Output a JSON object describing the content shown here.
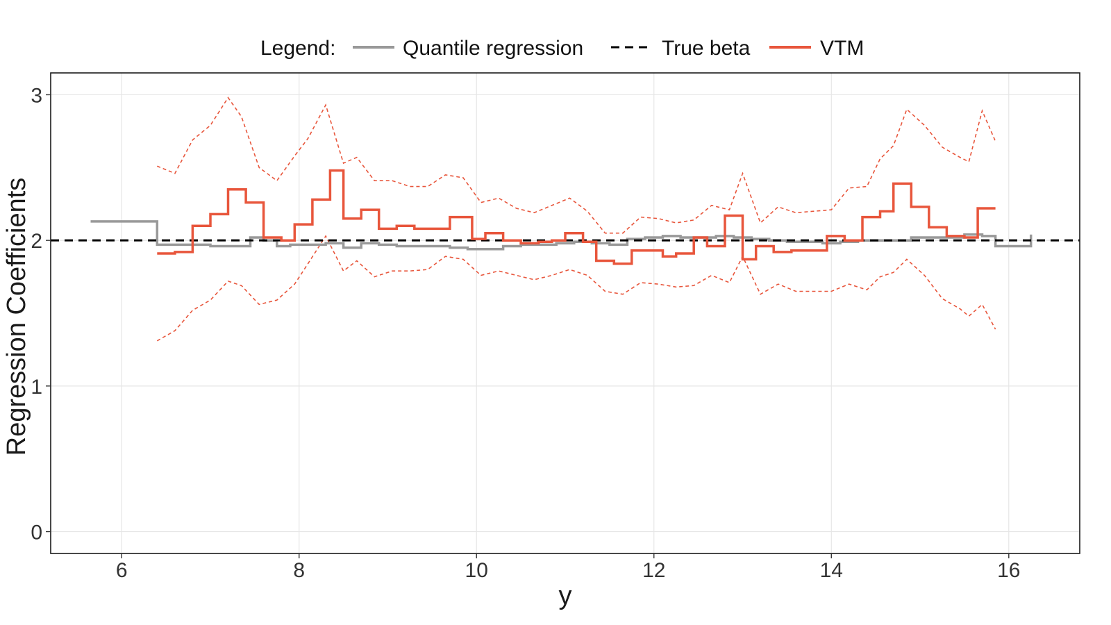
{
  "chart_data": {
    "type": "line",
    "title": "",
    "xlabel": "y",
    "ylabel": "Regression Coefficients",
    "xlim": [
      5.2,
      16.8
    ],
    "ylim": [
      -0.15,
      3.15
    ],
    "x_ticks": [
      6,
      8,
      10,
      12,
      14,
      16
    ],
    "y_ticks": [
      0,
      1,
      2,
      3
    ],
    "grid": true,
    "legend": {
      "position": "top",
      "title": "Legend:",
      "entries": [
        {
          "label": "Quantile regression",
          "color": "#999999",
          "style": "solid"
        },
        {
          "label": "True beta",
          "color": "#000000",
          "style": "dashed"
        },
        {
          "label": "VTM",
          "color": "#E8563C",
          "style": "solid"
        }
      ]
    },
    "series": [
      {
        "name": "Quantile regression",
        "kind": "step",
        "color": "#999999",
        "x": [
          5.65,
          6.4,
          6.55,
          6.8,
          7.0,
          7.2,
          7.45,
          7.6,
          7.75,
          7.9,
          8.1,
          8.3,
          8.5,
          8.7,
          8.9,
          9.1,
          9.3,
          9.5,
          9.7,
          9.9,
          10.1,
          10.3,
          10.5,
          10.7,
          10.9,
          11.1,
          11.3,
          11.5,
          11.7,
          11.9,
          12.1,
          12.3,
          12.5,
          12.7,
          12.9,
          13.1,
          13.3,
          13.5,
          13.7,
          13.9,
          14.1,
          14.3,
          14.5,
          14.7,
          14.9,
          15.1,
          15.3,
          15.5,
          15.7,
          15.85,
          16.25
        ],
        "y": [
          2.13,
          1.97,
          1.97,
          1.97,
          1.96,
          1.96,
          2.02,
          2.0,
          1.96,
          1.97,
          1.97,
          1.98,
          1.95,
          1.98,
          1.97,
          1.96,
          1.96,
          1.96,
          1.95,
          1.94,
          1.94,
          1.96,
          1.97,
          1.97,
          1.98,
          1.99,
          1.98,
          1.97,
          2.01,
          2.02,
          2.03,
          2.02,
          2.02,
          2.03,
          2.02,
          2.01,
          2.0,
          1.99,
          1.99,
          1.98,
          1.99,
          2.0,
          2.0,
          2.0,
          2.02,
          2.02,
          2.02,
          2.04,
          2.03,
          1.96,
          2.04
        ]
      },
      {
        "name": "True beta",
        "kind": "hline",
        "color": "#000000",
        "y": 2.0
      },
      {
        "name": "VTM",
        "kind": "step",
        "color": "#E8563C",
        "x": [
          6.4,
          6.6,
          6.8,
          7.0,
          7.2,
          7.4,
          7.6,
          7.8,
          7.95,
          8.15,
          8.35,
          8.5,
          8.7,
          8.9,
          9.1,
          9.3,
          9.5,
          9.7,
          9.95,
          10.1,
          10.3,
          10.5,
          10.7,
          10.85,
          11.0,
          11.2,
          11.35,
          11.55,
          11.75,
          11.9,
          12.1,
          12.25,
          12.45,
          12.6,
          12.8,
          13.0,
          13.15,
          13.35,
          13.55,
          13.75,
          13.95,
          14.15,
          14.35,
          14.55,
          14.7,
          14.9,
          15.1,
          15.3,
          15.5,
          15.65,
          15.85
        ],
        "y": [
          1.91,
          1.92,
          2.1,
          2.18,
          2.35,
          2.26,
          2.02,
          2.0,
          2.11,
          2.28,
          2.48,
          2.15,
          2.21,
          2.08,
          2.1,
          2.08,
          2.08,
          2.16,
          2.01,
          2.05,
          2.0,
          1.98,
          1.99,
          2.0,
          2.05,
          1.99,
          1.86,
          1.84,
          1.93,
          1.93,
          1.89,
          1.91,
          2.02,
          1.96,
          2.17,
          1.87,
          1.96,
          1.92,
          1.93,
          1.93,
          2.03,
          2.0,
          2.16,
          2.2,
          2.39,
          2.23,
          2.09,
          2.03,
          2.02,
          2.22,
          2.22
        ]
      },
      {
        "name": "",
        "kind": "band-upper",
        "color": "#E8563C",
        "x": [
          6.4,
          6.6,
          6.8,
          7.0,
          7.2,
          7.35,
          7.55,
          7.75,
          7.95,
          8.1,
          8.3,
          8.5,
          8.65,
          8.85,
          9.05,
          9.25,
          9.45,
          9.65,
          9.85,
          10.05,
          10.25,
          10.45,
          10.65,
          10.85,
          11.05,
          11.25,
          11.45,
          11.65,
          11.85,
          12.05,
          12.25,
          12.45,
          12.65,
          12.85,
          13.0,
          13.2,
          13.4,
          13.6,
          13.8,
          14.0,
          14.2,
          14.4,
          14.55,
          14.7,
          14.85,
          15.05,
          15.25,
          15.45,
          15.55,
          15.7,
          15.85
        ],
        "y": [
          2.51,
          2.46,
          2.69,
          2.79,
          2.98,
          2.85,
          2.5,
          2.41,
          2.58,
          2.7,
          2.93,
          2.53,
          2.57,
          2.41,
          2.41,
          2.37,
          2.37,
          2.45,
          2.43,
          2.26,
          2.29,
          2.22,
          2.19,
          2.24,
          2.29,
          2.2,
          2.05,
          2.05,
          2.16,
          2.15,
          2.12,
          2.14,
          2.24,
          2.21,
          2.46,
          2.12,
          2.23,
          2.19,
          2.2,
          2.21,
          2.36,
          2.37,
          2.56,
          2.65,
          2.9,
          2.79,
          2.64,
          2.57,
          2.54,
          2.89,
          2.68
        ]
      },
      {
        "name": "",
        "kind": "band-lower",
        "color": "#E8563C",
        "x": [
          6.4,
          6.6,
          6.8,
          7.0,
          7.2,
          7.35,
          7.55,
          7.75,
          7.95,
          8.1,
          8.3,
          8.5,
          8.65,
          8.85,
          9.05,
          9.25,
          9.45,
          9.65,
          9.85,
          10.05,
          10.25,
          10.45,
          10.65,
          10.85,
          11.05,
          11.25,
          11.45,
          11.65,
          11.85,
          12.05,
          12.25,
          12.45,
          12.65,
          12.85,
          13.0,
          13.2,
          13.4,
          13.6,
          13.8,
          14.0,
          14.2,
          14.4,
          14.55,
          14.7,
          14.85,
          15.05,
          15.25,
          15.45,
          15.55,
          15.7,
          15.85
        ],
        "y": [
          1.31,
          1.38,
          1.52,
          1.59,
          1.72,
          1.69,
          1.56,
          1.59,
          1.7,
          1.84,
          2.03,
          1.79,
          1.86,
          1.75,
          1.79,
          1.79,
          1.8,
          1.89,
          1.87,
          1.76,
          1.79,
          1.76,
          1.73,
          1.76,
          1.8,
          1.76,
          1.65,
          1.63,
          1.71,
          1.7,
          1.68,
          1.69,
          1.76,
          1.71,
          1.89,
          1.63,
          1.7,
          1.65,
          1.65,
          1.65,
          1.7,
          1.66,
          1.75,
          1.78,
          1.87,
          1.76,
          1.6,
          1.53,
          1.48,
          1.56,
          1.39
        ]
      }
    ]
  }
}
